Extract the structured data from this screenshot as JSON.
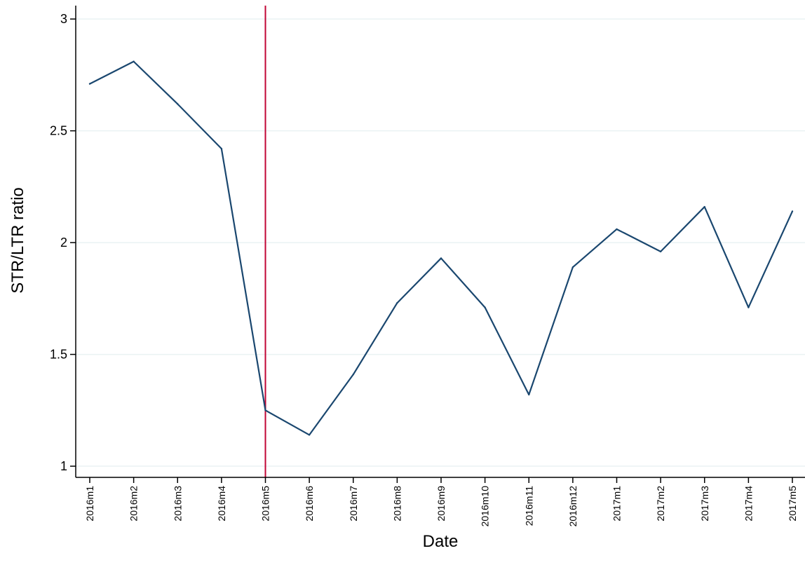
{
  "chart_data": {
    "type": "line",
    "xlabel": "Date",
    "ylabel": "STR/LTR ratio",
    "categories": [
      "2016m1",
      "2016m2",
      "2016m3",
      "2016m4",
      "2016m5",
      "2016m6",
      "2016m7",
      "2016m8",
      "2016m9",
      "2016m10",
      "2016m11",
      "2016m12",
      "2017m1",
      "2017m2",
      "2017m3",
      "2017m4",
      "2017m5"
    ],
    "series": [
      {
        "values": [
          2.71,
          2.81,
          2.62,
          2.42,
          1.25,
          1.14,
          1.41,
          1.73,
          1.93,
          1.71,
          1.32,
          1.89,
          2.06,
          1.96,
          2.16,
          1.71,
          2.14
        ]
      }
    ],
    "yticks": [
      1,
      1.5,
      2,
      2.5,
      3
    ],
    "ytick_labels": [
      "1",
      "1.5",
      "2",
      "2.5",
      "3"
    ],
    "ylim": [
      0.95,
      3.06
    ],
    "grid": true,
    "reference_line": {
      "orientation": "vertical",
      "x": "2016m5",
      "color": "#c10534"
    },
    "colors": {
      "series": "#1a476f",
      "reference_line": "#c10534",
      "grid": "#eaf2f3",
      "axis": "#000000"
    }
  }
}
